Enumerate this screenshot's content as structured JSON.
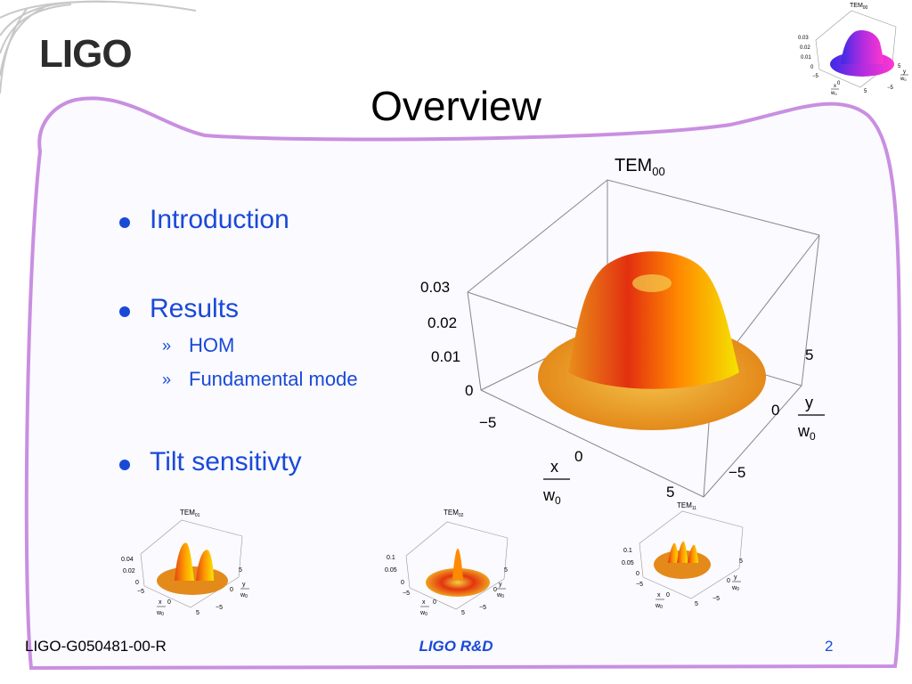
{
  "logo": {
    "text": "LIGO"
  },
  "slide": {
    "title": "Overview"
  },
  "bullets": [
    {
      "label": "Introduction",
      "subitems": []
    },
    {
      "label": "Results",
      "subitems": [
        "HOM",
        "Fundamental mode"
      ]
    },
    {
      "label": "Tilt sensitivty",
      "subitems": []
    }
  ],
  "sub_marker": "»",
  "main_plot": {
    "title": "TEM",
    "title_sub": "00",
    "z_ticks": [
      "0.03",
      "0.02",
      "0.01",
      "0"
    ],
    "x_ticks": [
      "−5",
      "0",
      "5"
    ],
    "y_ticks": [
      "5",
      "0",
      "−5"
    ],
    "x_num": "x",
    "y_num": "y",
    "den": "w",
    "den_sub": "0"
  },
  "thumbs": [
    {
      "title": "TEM",
      "title_sub": "00",
      "z_ticks": [
        "0.03",
        "0.02",
        "0.01",
        "0"
      ]
    },
    {
      "title": "TEM",
      "title_sub": "01",
      "z_ticks": [
        "0.04",
        "0.02",
        "0"
      ]
    },
    {
      "title": "TEM",
      "title_sub": "02",
      "z_ticks": [
        "0.1",
        "0.05",
        "0"
      ]
    },
    {
      "title": "TEM",
      "title_sub": "11",
      "z_ticks": [
        "0.1",
        "0.05",
        "0"
      ]
    }
  ],
  "thumb_ticks": {
    "x": [
      "−5",
      "0",
      "5"
    ],
    "y": [
      "5",
      "0",
      "−5"
    ]
  },
  "footer": {
    "left": "LIGO-G050481-00-R",
    "center": "LIGO R&D",
    "right": "2"
  },
  "colors": {
    "accent": "#1a49d8",
    "frame": "#c98fe0"
  }
}
